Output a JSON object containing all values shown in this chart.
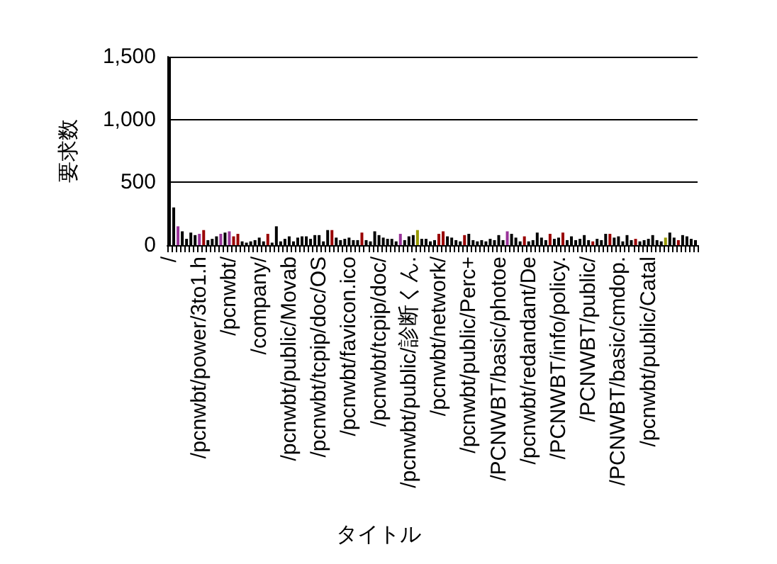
{
  "chart_data": {
    "type": "bar",
    "xlabel": "タイトル",
    "ylabel": "要求数",
    "categories": [
      "/",
      null,
      null,
      null,
      null,
      null,
      null,
      "/pcnwbt/power/3to1.h",
      null,
      null,
      null,
      null,
      null,
      null,
      "/pcnwbt/",
      null,
      null,
      null,
      null,
      null,
      null,
      "/company/",
      null,
      null,
      null,
      null,
      null,
      null,
      "/pcnwbt/public/Movab",
      null,
      null,
      null,
      null,
      null,
      null,
      "/pcnwbt/tcpip/doc/OS",
      null,
      null,
      null,
      null,
      null,
      null,
      "/pcnwbt/favicon.ico",
      null,
      null,
      null,
      null,
      null,
      null,
      "/pcnwbt/tcpip/doc/",
      null,
      null,
      null,
      null,
      null,
      null,
      "/pcnwbt/public/診断くん.",
      null,
      null,
      null,
      null,
      null,
      null,
      "/pcnwbt/network/",
      null,
      null,
      null,
      null,
      null,
      null,
      "/pcnwbt/public/Perc+",
      null,
      null,
      null,
      null,
      null,
      null,
      "/PCNWBT/basic/photoe",
      null,
      null,
      null,
      null,
      null,
      null,
      "/pcnwbt/redandant/De",
      null,
      null,
      null,
      null,
      null,
      null,
      "/PCNWBT/info/policy.",
      null,
      null,
      null,
      null,
      null,
      null,
      "/PCNWBT/public/",
      null,
      null,
      null,
      null,
      null,
      null,
      "/PCNWBT/basic/cmdop.",
      null,
      null,
      null,
      null,
      null,
      null,
      "/pcnwbt/public/Catal",
      null,
      null,
      null,
      null,
      null,
      null,
      null,
      null,
      null,
      null,
      null
    ],
    "values": [
      1490,
      300,
      150,
      110,
      50,
      100,
      80,
      90,
      120,
      40,
      50,
      70,
      90,
      100,
      110,
      70,
      90,
      30,
      20,
      30,
      40,
      60,
      30,
      90,
      20,
      150,
      30,
      50,
      70,
      30,
      60,
      70,
      70,
      50,
      80,
      80,
      30,
      120,
      120,
      60,
      40,
      50,
      60,
      40,
      40,
      100,
      40,
      30,
      110,
      80,
      60,
      50,
      50,
      30,
      90,
      40,
      70,
      80,
      120,
      50,
      50,
      30,
      40,
      90,
      110,
      70,
      60,
      40,
      30,
      80,
      90,
      40,
      30,
      40,
      30,
      50,
      40,
      80,
      40,
      110,
      90,
      60,
      30,
      70,
      30,
      40,
      100,
      60,
      40,
      90,
      50,
      60,
      100,
      40,
      70,
      40,
      50,
      80,
      40,
      30,
      50,
      40,
      90,
      90,
      60,
      70,
      30,
      80,
      40,
      50,
      30,
      40,
      50,
      80,
      40,
      30,
      60,
      100,
      60,
      40,
      80,
      70,
      50,
      40
    ],
    "colors": [
      "#000000",
      "#000000",
      "#993399",
      "#000000",
      "#000000",
      "#000000",
      "#000000",
      "#993399",
      "#990000",
      "#000000",
      "#000000",
      "#000000",
      "#993399",
      "#000000",
      "#993399",
      "#990000",
      "#990000",
      "#000000",
      "#000000",
      "#000000",
      "#000000",
      "#000000",
      "#000000",
      "#990000",
      "#000000",
      "#000000",
      "#000000",
      "#000000",
      "#000000",
      "#000000",
      "#000000",
      "#000000",
      "#000000",
      "#000000",
      "#000000",
      "#000000",
      "#000000",
      "#000000",
      "#990000",
      "#000000",
      "#000000",
      "#000000",
      "#000000",
      "#000000",
      "#000000",
      "#990000",
      "#000000",
      "#000000",
      "#000000",
      "#000000",
      "#000000",
      "#000000",
      "#000000",
      "#000000",
      "#993399",
      "#000000",
      "#000000",
      "#000000",
      "#999900",
      "#000000",
      "#000000",
      "#000000",
      "#000000",
      "#990000",
      "#990000",
      "#000000",
      "#000000",
      "#000000",
      "#000000",
      "#990000",
      "#000000",
      "#000000",
      "#000000",
      "#000000",
      "#000000",
      "#000000",
      "#000000",
      "#000000",
      "#000000",
      "#993399",
      "#000000",
      "#000000",
      "#000000",
      "#990000",
      "#000000",
      "#000000",
      "#000000",
      "#000000",
      "#000000",
      "#990000",
      "#000000",
      "#000000",
      "#990000",
      "#000000",
      "#000000",
      "#000000",
      "#000000",
      "#000000",
      "#000000",
      "#990000",
      "#000000",
      "#000000",
      "#000000",
      "#990000",
      "#000000",
      "#000000",
      "#000000",
      "#000000",
      "#000000",
      "#990000",
      "#000000",
      "#000000",
      "#000000",
      "#000000",
      "#000000",
      "#000000",
      "#999900",
      "#000000",
      "#000000",
      "#990000",
      "#000000",
      "#000000",
      "#000000",
      "#000000"
    ],
    "ylim": [
      0,
      1500
    ],
    "yticks": [
      0,
      500,
      {
        "value": 1000,
        "label": "1,000"
      },
      {
        "value": 1500,
        "label": "1,500"
      }
    ],
    "grid": "y"
  }
}
